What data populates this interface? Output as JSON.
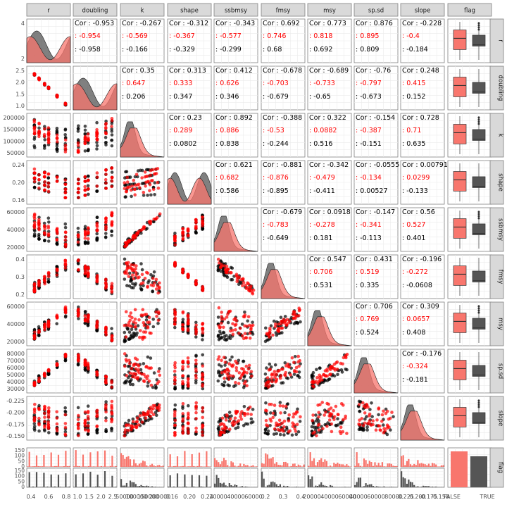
{
  "chart_data": {
    "type": "scatter",
    "title": "",
    "layout": "pairs-matrix",
    "variables": [
      "r",
      "doubling",
      "k",
      "shape",
      "ssbmsy",
      "fmsy",
      "msy",
      "sp.sd",
      "slope",
      "flag"
    ],
    "groups": [
      "FALSE",
      "TRUE"
    ],
    "colors": {
      "FALSE": "#ff0000",
      "TRUE": "#000000",
      "fill_false": "#f8766d",
      "fill_true": "#555555",
      "strip": "#d9d9d9",
      "panel_border": "#7f7f7f"
    },
    "corr_label": "Cor : ",
    "correlations": [
      {
        "row": "r",
        "col": "doubling",
        "overall": "-0.953",
        "FALSE": "-0.954",
        "TRUE": "-0.958"
      },
      {
        "row": "r",
        "col": "k",
        "overall": "-0.267",
        "FALSE": "-0.569",
        "TRUE": "-0.166"
      },
      {
        "row": "r",
        "col": "shape",
        "overall": "-0.312",
        "FALSE": "-0.367",
        "TRUE": "-0.329"
      },
      {
        "row": "r",
        "col": "ssbmsy",
        "overall": "-0.343",
        "FALSE": "-0.577",
        "TRUE": "-0.299"
      },
      {
        "row": "r",
        "col": "fmsy",
        "overall": "0.692",
        "FALSE": "0.746",
        "TRUE": "0.68"
      },
      {
        "row": "r",
        "col": "msy",
        "overall": "0.773",
        "FALSE": "0.818",
        "TRUE": "0.692"
      },
      {
        "row": "r",
        "col": "sp.sd",
        "overall": "0.876",
        "FALSE": "0.895",
        "TRUE": "0.809"
      },
      {
        "row": "r",
        "col": "slope",
        "overall": "-0.228",
        "FALSE": "-0.4",
        "TRUE": "-0.184"
      },
      {
        "row": "doubling",
        "col": "k",
        "overall": "0.35",
        "FALSE": "0.647",
        "TRUE": "0.206"
      },
      {
        "row": "doubling",
        "col": "shape",
        "overall": "0.313",
        "FALSE": "0.333",
        "TRUE": "0.347"
      },
      {
        "row": "doubling",
        "col": "ssbmsy",
        "overall": "0.412",
        "FALSE": "0.626",
        "TRUE": "0.346"
      },
      {
        "row": "doubling",
        "col": "fmsy",
        "overall": "-0.678",
        "FALSE": "-0.703",
        "TRUE": "-0.679"
      },
      {
        "row": "doubling",
        "col": "msy",
        "overall": "-0.689",
        "FALSE": "-0.733",
        "TRUE": "-0.65"
      },
      {
        "row": "doubling",
        "col": "sp.sd",
        "overall": "-0.76",
        "FALSE": "-0.797",
        "TRUE": "-0.673"
      },
      {
        "row": "doubling",
        "col": "slope",
        "overall": "0.248",
        "FALSE": "0.415",
        "TRUE": "0.152"
      },
      {
        "row": "k",
        "col": "shape",
        "overall": "0.23",
        "FALSE": "0.289",
        "TRUE": "0.0802"
      },
      {
        "row": "k",
        "col": "ssbmsy",
        "overall": "0.892",
        "FALSE": "0.886",
        "TRUE": "0.838"
      },
      {
        "row": "k",
        "col": "fmsy",
        "overall": "-0.388",
        "FALSE": "-0.53",
        "TRUE": "-0.244"
      },
      {
        "row": "k",
        "col": "msy",
        "overall": "0.322",
        "FALSE": "0.0882",
        "TRUE": "0.516"
      },
      {
        "row": "k",
        "col": "sp.sd",
        "overall": "-0.154",
        "FALSE": "-0.387",
        "TRUE": "-0.151"
      },
      {
        "row": "k",
        "col": "slope",
        "overall": "0.728",
        "FALSE": "0.71",
        "TRUE": "0.635"
      },
      {
        "row": "shape",
        "col": "ssbmsy",
        "overall": "0.621",
        "FALSE": "0.682",
        "TRUE": "0.586"
      },
      {
        "row": "shape",
        "col": "fmsy",
        "overall": "-0.881",
        "FALSE": "-0.876",
        "TRUE": "-0.895"
      },
      {
        "row": "shape",
        "col": "msy",
        "overall": "-0.342",
        "FALSE": "-0.479",
        "TRUE": "-0.411"
      },
      {
        "row": "shape",
        "col": "sp.sd",
        "overall": "-0.0555",
        "FALSE": "-0.134",
        "TRUE": "0.00527"
      },
      {
        "row": "shape",
        "col": "slope",
        "overall": "0.00791",
        "FALSE": "0.0299",
        "TRUE": "-0.133"
      },
      {
        "row": "ssbmsy",
        "col": "fmsy",
        "overall": "-0.679",
        "FALSE": "-0.783",
        "TRUE": "-0.649"
      },
      {
        "row": "ssbmsy",
        "col": "msy",
        "overall": "0.0918",
        "FALSE": "-0.278",
        "TRUE": "0.181"
      },
      {
        "row": "ssbmsy",
        "col": "sp.sd",
        "overall": "-0.147",
        "FALSE": "-0.341",
        "TRUE": "-0.113"
      },
      {
        "row": "ssbmsy",
        "col": "slope",
        "overall": "0.56",
        "FALSE": "0.527",
        "TRUE": "0.401"
      },
      {
        "row": "fmsy",
        "col": "msy",
        "overall": "0.547",
        "FALSE": "0.706",
        "TRUE": "0.531"
      },
      {
        "row": "fmsy",
        "col": "sp.sd",
        "overall": "0.431",
        "FALSE": "0.519",
        "TRUE": "0.335"
      },
      {
        "row": "fmsy",
        "col": "slope",
        "overall": "-0.196",
        "FALSE": "-0.272",
        "TRUE": "-0.0608"
      },
      {
        "row": "msy",
        "col": "sp.sd",
        "overall": "0.706",
        "FALSE": "0.769",
        "TRUE": "0.524"
      },
      {
        "row": "msy",
        "col": "slope",
        "overall": "0.309",
        "FALSE": "0.0657",
        "TRUE": "0.408"
      },
      {
        "row": "sp.sd",
        "col": "slope",
        "overall": "-0.176",
        "FALSE": "-0.324",
        "TRUE": "-0.181"
      }
    ],
    "axes": {
      "r": {
        "range": [
          0.2,
          0.9
        ],
        "ticks": [
          "0.4",
          "0.6",
          "0.8"
        ],
        "tick_values": [
          0.4,
          0.6,
          0.8
        ],
        "levels": [
          0.3,
          0.38,
          0.48,
          0.55,
          0.7,
          0.85
        ]
      },
      "doubling": {
        "range": [
          0.8,
          2.8
        ],
        "ticks": [
          "1.0",
          "1.5",
          "2.0",
          "2.5"
        ],
        "tick_values": [
          1.0,
          1.5,
          2.0,
          2.5
        ],
        "levels": [
          0.95,
          1.3,
          1.45,
          1.9,
          2.35,
          2.65
        ]
      },
      "k": {
        "range": [
          40000,
          250000
        ],
        "ticks": [
          "50000",
          "100000",
          "150000",
          "200000"
        ],
        "tick_values": [
          50000,
          100000,
          150000,
          200000
        ]
      },
      "shape": {
        "range": [
          0.14,
          0.29
        ],
        "ticks": [
          "0.16",
          "0.20",
          "0.24"
        ],
        "tick_values": [
          0.16,
          0.2,
          0.24
        ],
        "levels": [
          0.16,
          0.19,
          0.21,
          0.24,
          0.265
        ]
      },
      "ssbmsy": {
        "range": [
          5000,
          65000
        ],
        "ticks": [
          "20000",
          "40000",
          "60000"
        ],
        "tick_values": [
          20000,
          40000,
          60000
        ]
      },
      "fmsy": {
        "range": [
          0.07,
          0.43
        ],
        "ticks": [
          "0.2",
          "0.3",
          "0.4"
        ],
        "tick_values": [
          0.2,
          0.3,
          0.4
        ]
      },
      "msy": {
        "range": [
          10000,
          70000
        ],
        "ticks": [
          "20000",
          "40000",
          "60000"
        ],
        "tick_values": [
          20000,
          40000,
          60000
        ]
      },
      "sp.sd": {
        "range": [
          22000,
          82000
        ],
        "ticks": [
          "30000",
          "40000",
          "50000",
          "60000",
          "70000",
          "80000"
        ],
        "tick_values": [
          30000,
          40000,
          50000,
          60000,
          70000,
          80000
        ]
      },
      "slope": {
        "range": [
          -0.235,
          -0.145
        ],
        "ticks": [
          "-0.150",
          "-0.175",
          "-0.200",
          "-0.225"
        ],
        "tick_values": [
          -0.15,
          -0.175,
          -0.2,
          -0.225
        ]
      },
      "flag": {
        "categories": [
          "FALSE",
          "TRUE"
        ]
      }
    },
    "bottom_tick_labels": {
      "r": [
        "0.4",
        "0.6",
        "0.8"
      ],
      "doubling": [
        "1.0",
        "1.5",
        "2.0",
        "2.5"
      ],
      "k": [
        "50000",
        "100000",
        "150000",
        "200000"
      ],
      "shape": [
        "0.16",
        "0.20",
        "0.24"
      ],
      "ssbmsy": [
        "20000",
        "40000",
        "60000"
      ],
      "fmsy": [
        "0.2",
        "0.3",
        "0.4"
      ],
      "msy": [
        "20000",
        "40000",
        "60000"
      ],
      "sp.sd": [
        "40000",
        "60000",
        "80000"
      ],
      "slope": [
        "-0.225",
        "-0.200",
        "-0.175",
        "-0.150"
      ],
      "flag": [
        "FALSE",
        "TRUE"
      ]
    },
    "left_tick_labels": {
      "r": [
        "2",
        "4"
      ],
      "doubling": [
        "1.0",
        "1.5",
        "2.0",
        "2.5"
      ],
      "k": [
        "50000",
        "100000",
        "150000",
        "200000"
      ],
      "shape": [
        "0.16",
        "0.20",
        "0.24"
      ],
      "ssbmsy": [
        "20000",
        "40000",
        "60000"
      ],
      "fmsy": [
        "0.2",
        "0.3",
        "0.4"
      ],
      "msy": [
        "20000",
        "40000",
        "60000"
      ],
      "sp.sd": [
        "30000",
        "40000",
        "50000",
        "60000",
        "70000",
        "80000"
      ],
      "slope": [
        "-0.150",
        "-0.175",
        "-0.200",
        "-0.225"
      ],
      "flag_top": [
        "0",
        "50",
        "100",
        "150"
      ],
      "flag_bottom": [
        "0",
        "50",
        "100",
        "150"
      ]
    },
    "left_axis_ranges": {
      "r": [
        0,
        5.2
      ],
      "flag_count": [
        0,
        150
      ]
    }
  }
}
